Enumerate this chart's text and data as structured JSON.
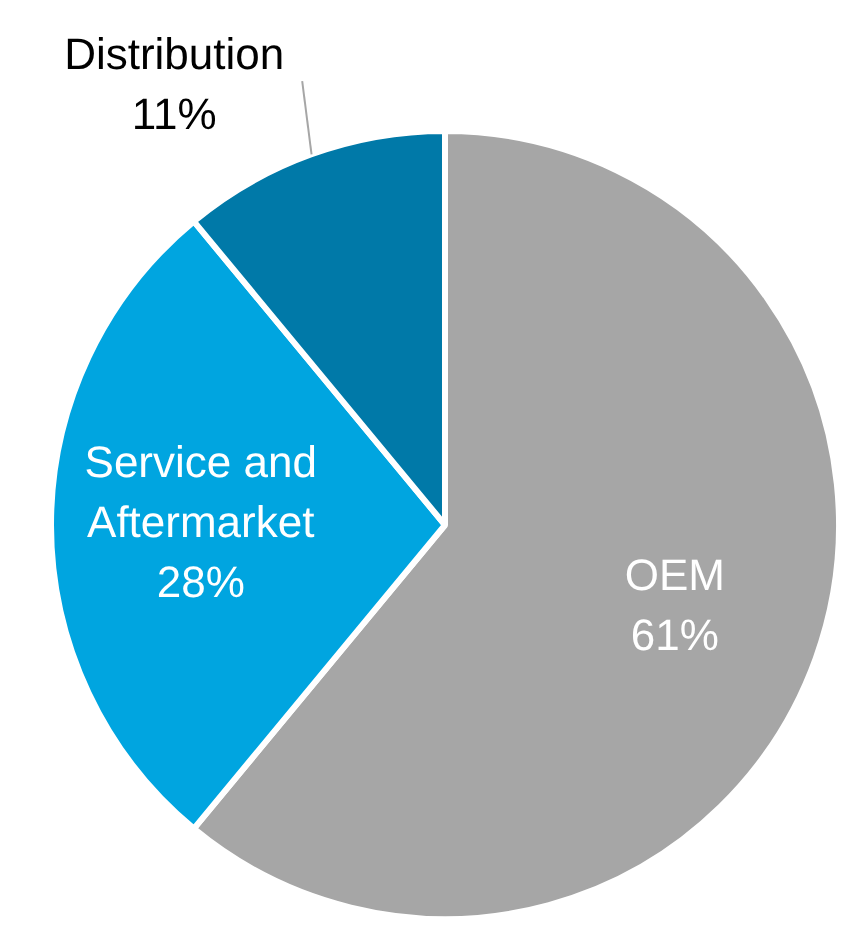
{
  "chart_data": {
    "type": "pie",
    "categories": [
      "OEM",
      "Service and Aftermarket",
      "Distribution"
    ],
    "values": [
      61,
      28,
      11
    ],
    "colors": [
      "#a6a6a6",
      "#00a5e0",
      "#0079a8"
    ],
    "value_labels": [
      "61%",
      "28%",
      "11%"
    ],
    "legend": false
  }
}
